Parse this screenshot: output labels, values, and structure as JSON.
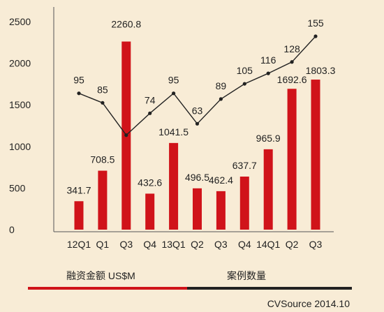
{
  "chart_data": {
    "type": "bar",
    "categories": [
      "12Q1",
      "Q1",
      "Q3",
      "Q4",
      "13Q1",
      "Q2",
      "Q3",
      "Q4",
      "14Q1",
      "Q2",
      "Q3"
    ],
    "series": [
      {
        "name": "融资金额 US$M",
        "type": "bar",
        "values": [
          341.7,
          708.5,
          2260.8,
          432.6,
          1041.5,
          496.5,
          462.4,
          637.7,
          965.9,
          1692.6,
          1803.3
        ],
        "color": "#d0131a"
      },
      {
        "name": "案例数量",
        "type": "line",
        "values": [
          95,
          85,
          51,
          74,
          95,
          63,
          89,
          105,
          116,
          128,
          155
        ],
        "labels": [
          "95",
          "85",
          "",
          "74",
          "95",
          "63",
          "89",
          "105",
          "116",
          "128",
          "155"
        ],
        "color": "#222222"
      }
    ],
    "yticks": [
      "0",
      "500",
      "1000",
      "1500",
      "2000",
      "2500"
    ],
    "ylim": [
      0,
      2500
    ],
    "source": "CVSource 2014.10"
  }
}
